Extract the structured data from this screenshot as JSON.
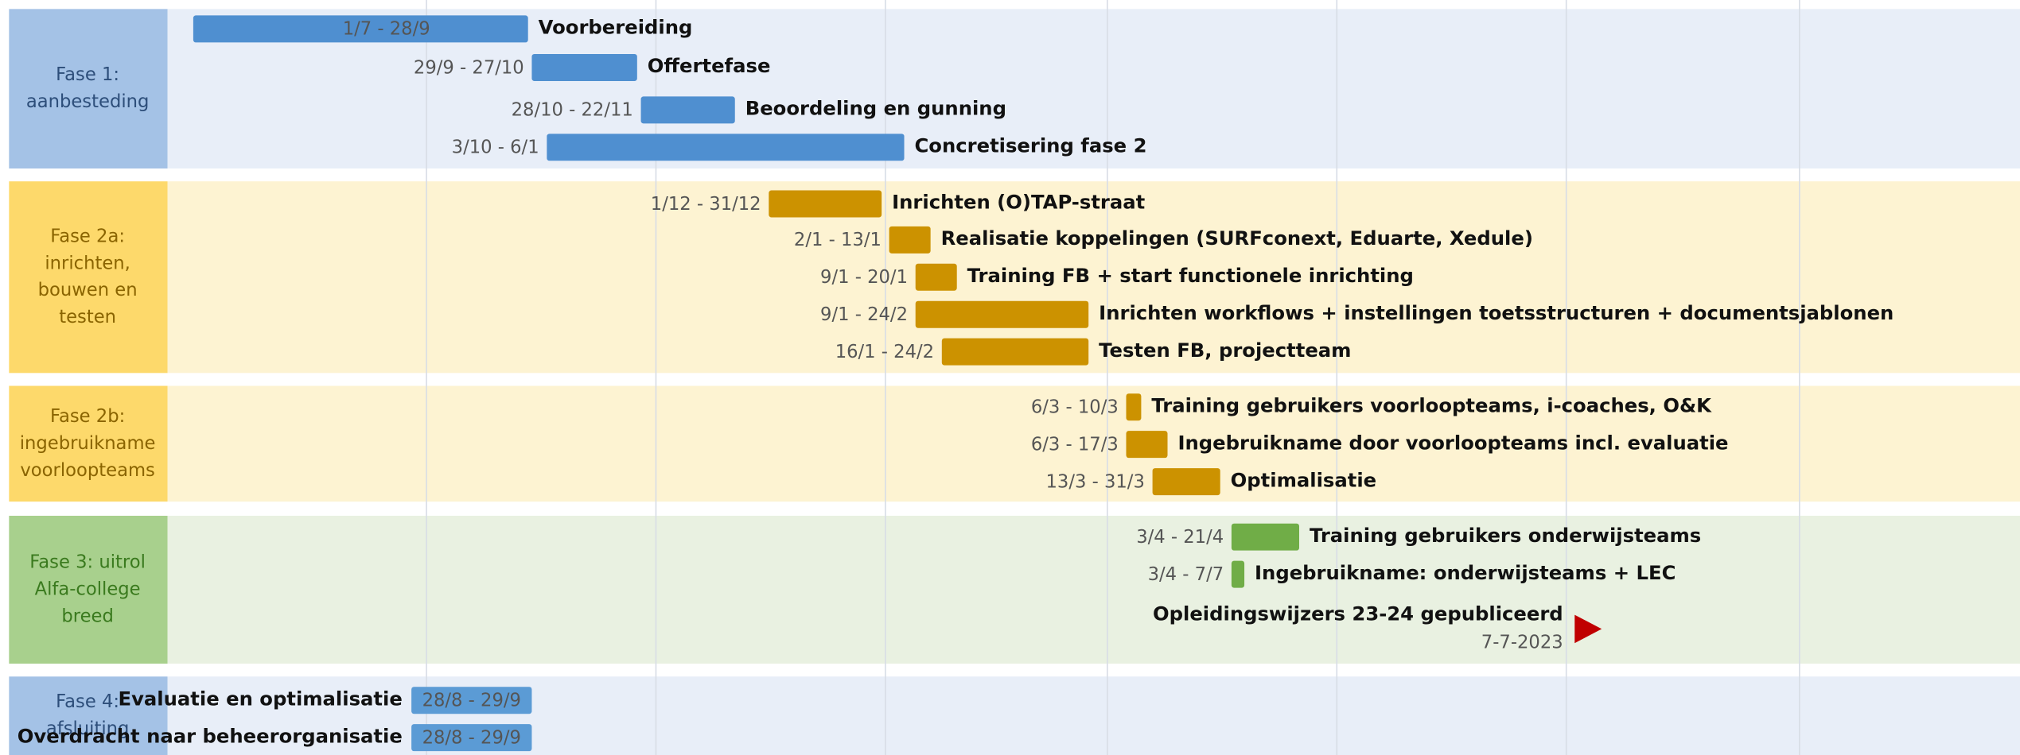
{
  "phases": [
    {
      "label_lines": [
        "Fase 1:",
        "aanbesteding"
      ],
      "tasks": [
        {
          "name": "Voorbereiding",
          "dates": "1/7 - 28/9"
        },
        {
          "name": "Offertefase",
          "dates": "29/9 - 27/10"
        },
        {
          "name": "Beoordeling en gunning",
          "dates": "28/10 - 22/11"
        },
        {
          "name": "Concretisering fase 2",
          "dates": "3/10 - 6/1"
        }
      ]
    },
    {
      "label_lines": [
        "Fase 2a:",
        "inrichten,",
        "bouwen en",
        "testen"
      ],
      "tasks": [
        {
          "name": "Inrichten (O)TAP-straat",
          "dates": "1/12 - 31/12"
        },
        {
          "name": "Realisatie koppelingen (SURFconext, Eduarte, Xedule)",
          "dates": "2/1 - 13/1"
        },
        {
          "name": "Training FB + start functionele inrichting",
          "dates": "9/1 - 20/1"
        },
        {
          "name": "Inrichten workflows + instellingen toetsstructuren + documentsjablonen",
          "dates": "9/1 - 24/2"
        },
        {
          "name": "Testen FB, projectteam",
          "dates": "16/1 - 24/2"
        }
      ]
    },
    {
      "label_lines": [
        "Fase 2b:",
        "ingebruikname",
        "voorloopteams"
      ],
      "tasks": [
        {
          "name": "Training gebruikers voorloopteams, i-coaches, O&K",
          "dates": "6/3 - 10/3"
        },
        {
          "name": "Ingebruikname door voorloopteams incl. evaluatie",
          "dates": "6/3 - 17/3"
        },
        {
          "name": "Optimalisatie",
          "dates": "13/3 - 31/3"
        }
      ]
    },
    {
      "label_lines": [
        "Fase 3: uitrol",
        "Alfa-college",
        "breed"
      ],
      "tasks": [
        {
          "name": "Training gebruikers onderwijsteams",
          "dates": "3/4 - 21/4"
        },
        {
          "name": "Ingebruikname: onderwijsteams + LEC",
          "dates": "3/4 - 7/7"
        }
      ],
      "milestone": {
        "name": "Opleidingswijzers 23-24 gepubliceerd",
        "date": "7-7-2023"
      }
    },
    {
      "label_lines": [
        "Fase 4:",
        "afsluiting"
      ],
      "tasks": [
        {
          "name": "Evaluatie en optimalisatie",
          "dates": "28/8 - 29/9"
        },
        {
          "name": "Overdracht naar beheerorganisatie",
          "dates": "28/8 - 29/9"
        }
      ]
    }
  ]
}
